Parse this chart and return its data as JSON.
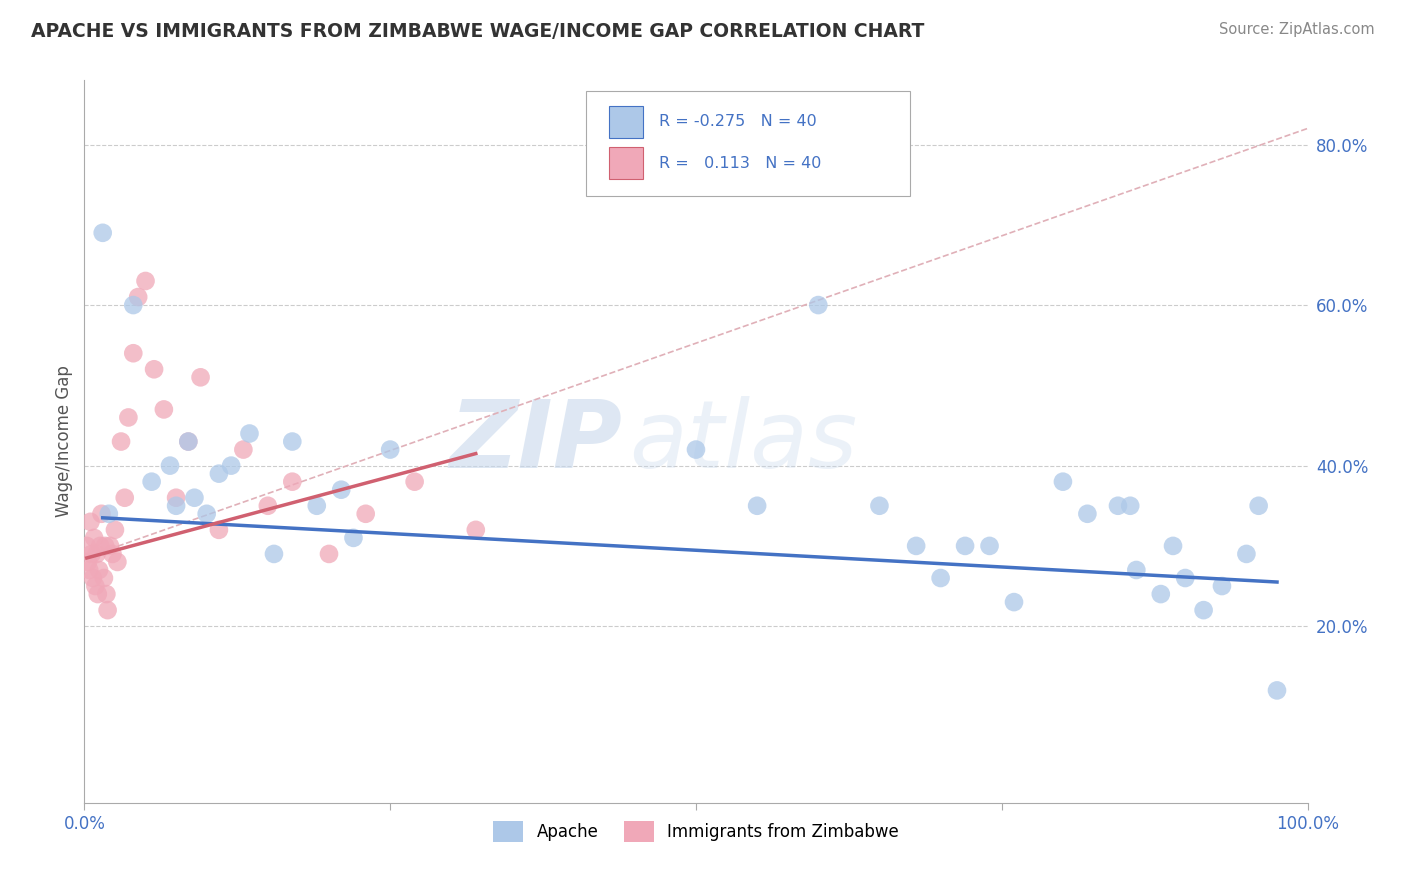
{
  "title": "APACHE VS IMMIGRANTS FROM ZIMBABWE WAGE/INCOME GAP CORRELATION CHART",
  "source": "Source: ZipAtlas.com",
  "ylabel": "Wage/Income Gap",
  "xlim": [
    0.0,
    1.0
  ],
  "ylim_min": -0.02,
  "ylim_max": 0.88,
  "y_tick_values": [
    0.2,
    0.4,
    0.6,
    0.8
  ],
  "y_tick_labels": [
    "20.0%",
    "40.0%",
    "60.0%",
    "80.0%"
  ],
  "color_apache": "#adc8e8",
  "color_zimbabwe": "#f0a8b8",
  "color_line_apache": "#4472c4",
  "color_line_zimbabwe": "#d06070",
  "color_grid": "#cccccc",
  "color_title": "#333333",
  "color_source": "#888888",
  "color_axis_blue": "#4472c4",
  "watermark_zip": "ZIP",
  "watermark_atlas": "atlas",
  "apache_x": [
    0.015,
    0.02,
    0.04,
    0.055,
    0.07,
    0.075,
    0.085,
    0.09,
    0.1,
    0.11,
    0.12,
    0.135,
    0.155,
    0.17,
    0.19,
    0.21,
    0.22,
    0.25,
    0.5,
    0.55,
    0.6,
    0.65,
    0.68,
    0.7,
    0.72,
    0.74,
    0.76,
    0.8,
    0.82,
    0.845,
    0.855,
    0.86,
    0.88,
    0.89,
    0.9,
    0.915,
    0.93,
    0.95,
    0.96,
    0.975
  ],
  "apache_y": [
    0.69,
    0.34,
    0.6,
    0.38,
    0.4,
    0.35,
    0.43,
    0.36,
    0.34,
    0.39,
    0.4,
    0.44,
    0.29,
    0.43,
    0.35,
    0.37,
    0.31,
    0.42,
    0.42,
    0.35,
    0.6,
    0.35,
    0.3,
    0.26,
    0.3,
    0.3,
    0.23,
    0.38,
    0.34,
    0.35,
    0.35,
    0.27,
    0.24,
    0.3,
    0.26,
    0.22,
    0.25,
    0.29,
    0.35,
    0.12
  ],
  "zimbabwe_x": [
    0.002,
    0.003,
    0.004,
    0.005,
    0.006,
    0.007,
    0.008,
    0.009,
    0.01,
    0.011,
    0.012,
    0.013,
    0.014,
    0.016,
    0.017,
    0.018,
    0.019,
    0.021,
    0.023,
    0.025,
    0.027,
    0.03,
    0.033,
    0.036,
    0.04,
    0.044,
    0.05,
    0.057,
    0.065,
    0.075,
    0.085,
    0.095,
    0.11,
    0.13,
    0.15,
    0.17,
    0.2,
    0.23,
    0.27,
    0.32
  ],
  "zimbabwe_y": [
    0.3,
    0.28,
    0.27,
    0.33,
    0.29,
    0.26,
    0.31,
    0.25,
    0.29,
    0.24,
    0.27,
    0.3,
    0.34,
    0.26,
    0.3,
    0.24,
    0.22,
    0.3,
    0.29,
    0.32,
    0.28,
    0.43,
    0.36,
    0.46,
    0.54,
    0.61,
    0.63,
    0.52,
    0.47,
    0.36,
    0.43,
    0.51,
    0.32,
    0.42,
    0.35,
    0.38,
    0.29,
    0.34,
    0.38,
    0.32
  ],
  "apache_trend_x": [
    0.015,
    0.975
  ],
  "apache_trend_y": [
    0.335,
    0.255
  ],
  "zimbabwe_trend_x": [
    0.002,
    0.32
  ],
  "zimbabwe_trend_y": [
    0.285,
    0.415
  ],
  "diag_line_x": [
    0.0,
    1.0
  ],
  "diag_line_y": [
    0.285,
    0.82
  ]
}
